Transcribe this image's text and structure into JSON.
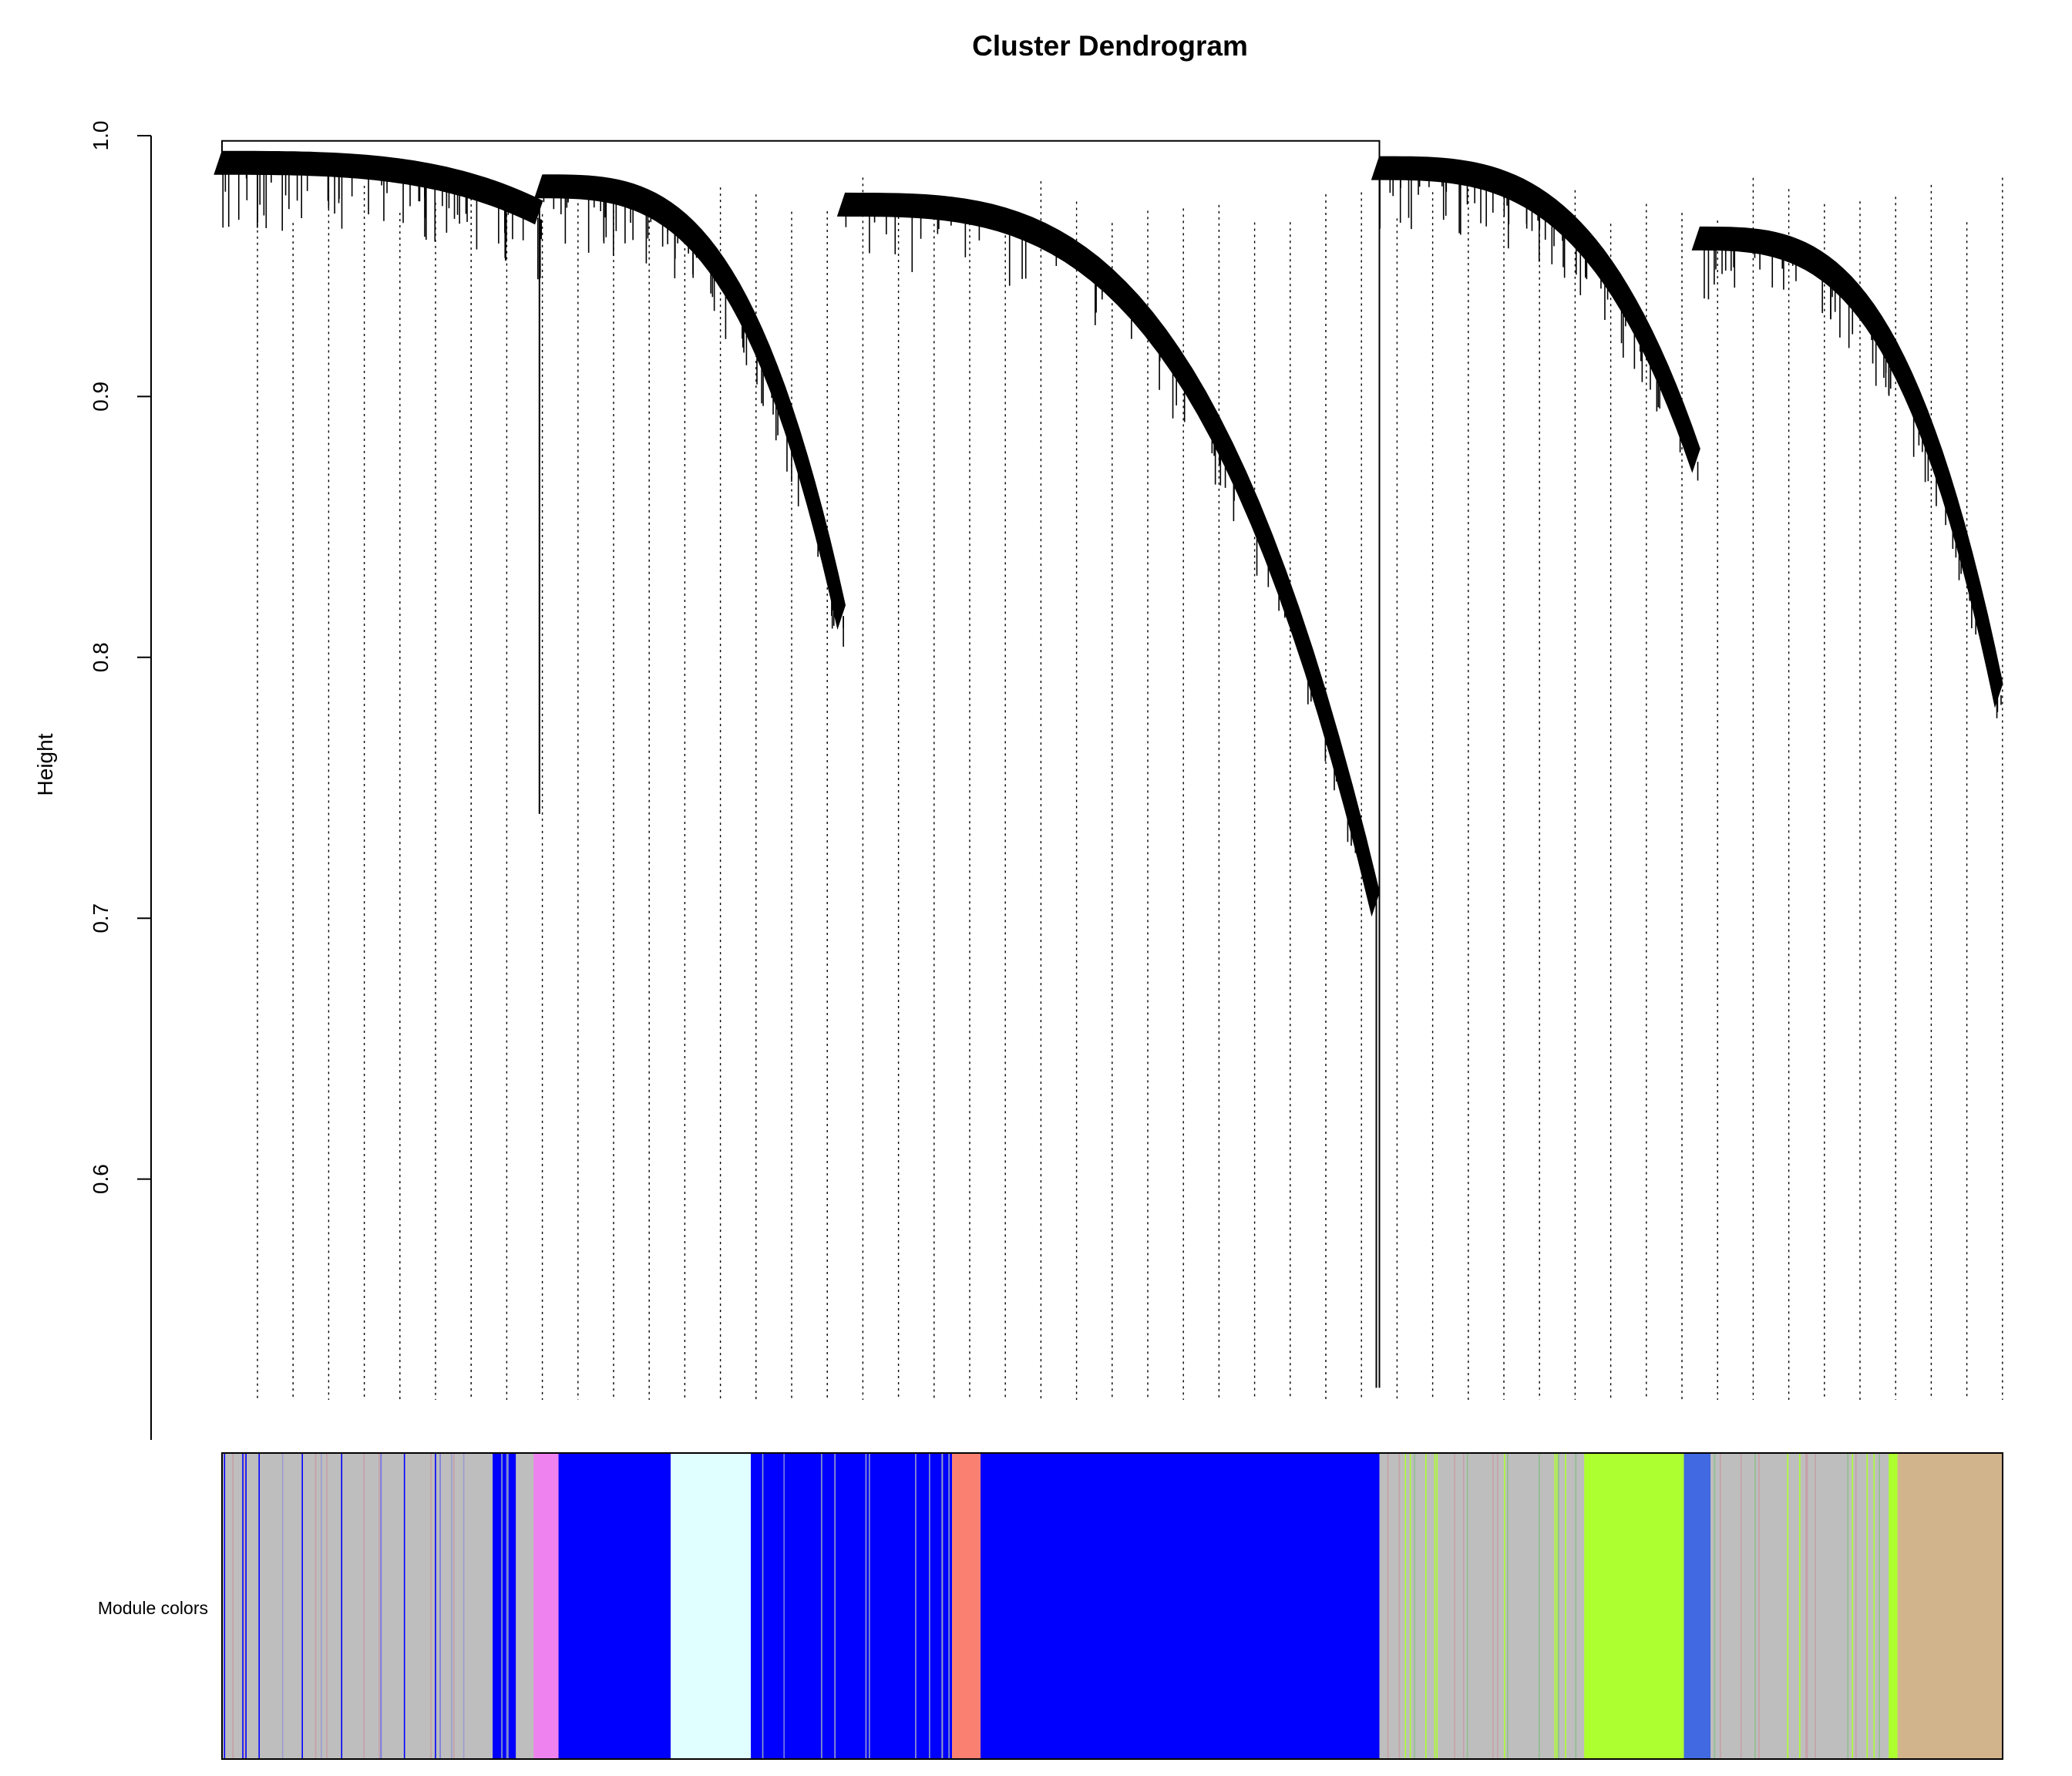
{
  "chart_data": {
    "type": "dendrogram",
    "title": "Cluster Dendrogram",
    "ylabel": "Height",
    "xlabel": "",
    "ylim": [
      0.5,
      1.0
    ],
    "yticks": [
      0.6,
      0.7,
      0.8,
      0.9,
      1.0
    ],
    "ytick_labels": [
      "0.6",
      "0.7",
      "0.8",
      "0.9",
      "1.0"
    ],
    "color_bar_label": "Module colors",
    "root_height": 1.0,
    "top_branches": [
      {
        "name": "left",
        "merge_height": 0.998,
        "span": [
          0.0,
          0.65
        ]
      },
      {
        "name": "right",
        "merge_height": 0.997,
        "span": [
          0.65,
          1.0
        ]
      }
    ],
    "subclusters": [
      {
        "span": [
          0.0,
          0.18
        ],
        "top": 0.994,
        "bottom": 0.975,
        "min_leaf": 0.74
      },
      {
        "span": [
          0.18,
          0.35
        ],
        "top": 0.985,
        "bottom": 0.82,
        "min_leaf": 0.82
      },
      {
        "span": [
          0.35,
          0.65
        ],
        "top": 0.978,
        "bottom": 0.71,
        "min_leaf": 0.52
      },
      {
        "span": [
          0.65,
          0.83
        ],
        "top": 0.992,
        "bottom": 0.88,
        "min_leaf": 0.88
      },
      {
        "span": [
          0.83,
          1.0
        ],
        "top": 0.965,
        "bottom": 0.79,
        "min_leaf": 0.79
      }
    ],
    "module_colors": [
      {
        "color": "#bebebe",
        "start": 0.0,
        "end": 0.152
      },
      {
        "color": "#0000ff",
        "start": 0.152,
        "end": 0.165
      },
      {
        "color": "#ee82ee",
        "start": 0.175,
        "end": 0.189
      },
      {
        "color": "#0000ff",
        "start": 0.189,
        "end": 0.252
      },
      {
        "color": "#e0ffff",
        "start": 0.252,
        "end": 0.297
      },
      {
        "color": "#0000ff",
        "start": 0.297,
        "end": 0.41
      },
      {
        "color": "#fa8072",
        "start": 0.41,
        "end": 0.426
      },
      {
        "color": "#0000ff",
        "start": 0.426,
        "end": 0.65
      },
      {
        "color": "#bebebe",
        "start": 0.65,
        "end": 0.765
      },
      {
        "color": "#adff2f",
        "start": 0.765,
        "end": 0.821
      },
      {
        "color": "#4169e1",
        "start": 0.821,
        "end": 0.836
      },
      {
        "color": "#bebebe",
        "start": 0.836,
        "end": 0.936
      },
      {
        "color": "#adff2f",
        "start": 0.936,
        "end": 0.941
      },
      {
        "color": "#d2b48c",
        "start": 0.941,
        "end": 1.0
      }
    ]
  }
}
